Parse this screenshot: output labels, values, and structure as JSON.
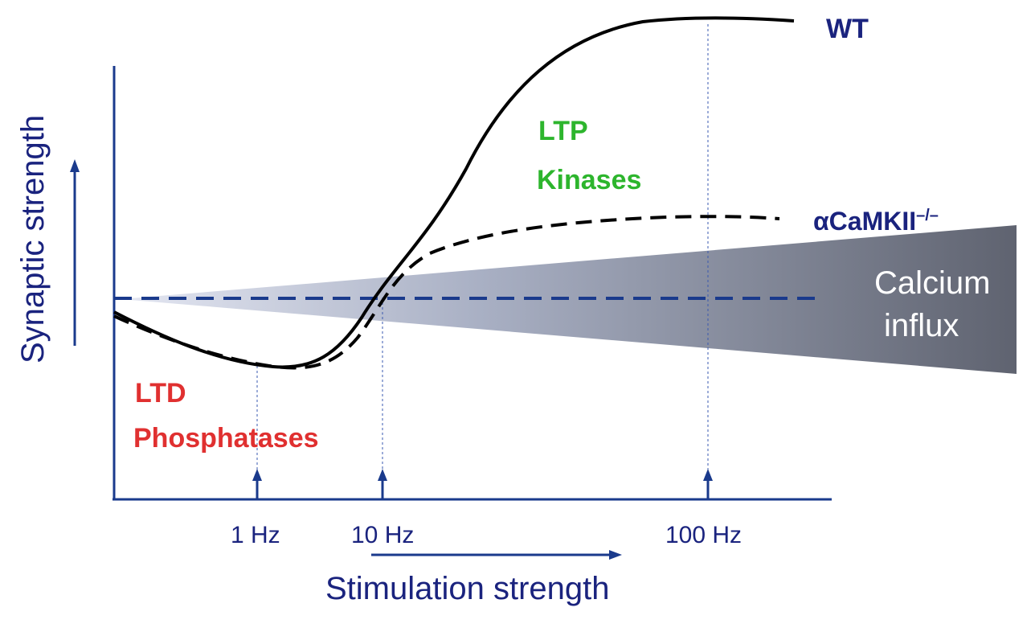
{
  "diagram": {
    "y_axis_label": "Synaptic strength",
    "x_axis_label": "Stimulation strength",
    "x_ticks": [
      "1 Hz",
      "10 Hz",
      "100 Hz"
    ],
    "curves": {
      "wt": {
        "label": "WT",
        "style": "solid",
        "color": "#000000"
      },
      "mutant": {
        "label_base": "αCaMKII",
        "label_sup": "–/–",
        "style": "dashed",
        "color": "#000000"
      }
    },
    "baseline": {
      "style": "dashed",
      "color": "#1a3a8c"
    },
    "ltp": {
      "line1": "LTP",
      "line2": "Kinases",
      "color": "#2db52d"
    },
    "ltd": {
      "line1": "LTD",
      "line2": "Phosphatases",
      "color": "#e03030"
    },
    "calcium": {
      "line1": "Calcium",
      "line2": "influx",
      "text_color": "#ffffff",
      "gradient_start": "#d8dcec",
      "gradient_end": "#5f6370"
    },
    "colors": {
      "axis": "#1a3a8c",
      "label": "#1a237e"
    }
  }
}
